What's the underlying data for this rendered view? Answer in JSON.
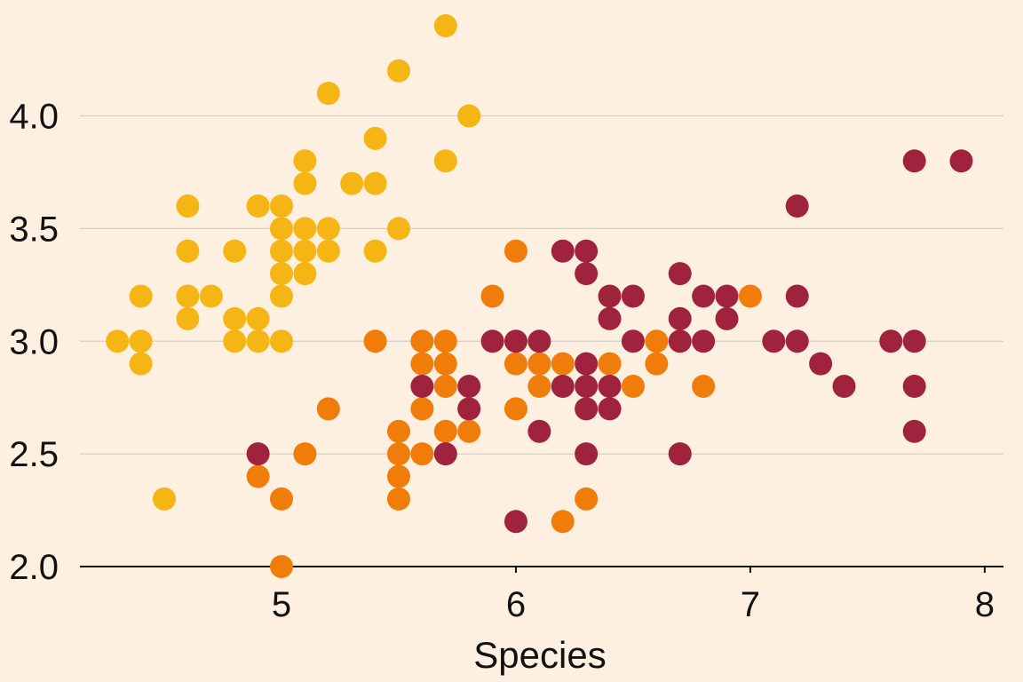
{
  "chart_data": {
    "type": "scatter",
    "title": "",
    "xlabel": "Species",
    "ylabel": "",
    "xlim": [
      4.14,
      8.08
    ],
    "ylim": [
      2.0,
      4.4
    ],
    "x_ticks": [
      5,
      6,
      7,
      8
    ],
    "y_ticks": [
      2.0,
      2.5,
      3.0,
      3.5,
      4.0
    ],
    "x_tick_labels": [
      "5",
      "6",
      "7",
      "8"
    ],
    "y_tick_labels": [
      "2.0",
      "2.5",
      "3.0",
      "3.5",
      "4.0"
    ],
    "grid": {
      "horizontal": true,
      "vertical": false
    },
    "legend": "none",
    "colors": {
      "background": "#fdf0e0",
      "grid": "#d6cec6",
      "axis": "#111111"
    },
    "series": [
      {
        "color": "#f5b514",
        "points": [
          [
            4.3,
            3.0
          ],
          [
            4.4,
            3.2
          ],
          [
            4.4,
            3.0
          ],
          [
            4.4,
            2.9
          ],
          [
            4.5,
            2.3
          ],
          [
            4.6,
            3.6
          ],
          [
            4.6,
            3.4
          ],
          [
            4.6,
            3.2
          ],
          [
            4.6,
            3.1
          ],
          [
            4.7,
            3.2
          ],
          [
            4.8,
            3.4
          ],
          [
            4.8,
            3.1
          ],
          [
            4.8,
            3.0
          ],
          [
            4.9,
            3.6
          ],
          [
            4.9,
            3.1
          ],
          [
            4.9,
            3.0
          ],
          [
            5.0,
            3.6
          ],
          [
            5.0,
            3.5
          ],
          [
            5.0,
            3.4
          ],
          [
            5.0,
            3.3
          ],
          [
            5.0,
            3.2
          ],
          [
            5.0,
            3.0
          ],
          [
            5.1,
            3.8
          ],
          [
            5.1,
            3.7
          ],
          [
            5.1,
            3.5
          ],
          [
            5.1,
            3.4
          ],
          [
            5.1,
            3.3
          ],
          [
            5.2,
            4.1
          ],
          [
            5.2,
            3.5
          ],
          [
            5.2,
            3.4
          ],
          [
            5.3,
            3.7
          ],
          [
            5.4,
            3.9
          ],
          [
            5.4,
            3.7
          ],
          [
            5.4,
            3.4
          ],
          [
            5.5,
            4.2
          ],
          [
            5.5,
            3.5
          ],
          [
            5.7,
            4.4
          ],
          [
            5.7,
            3.8
          ],
          [
            5.8,
            4.0
          ]
        ]
      },
      {
        "color": "#f07c0a",
        "points": [
          [
            4.9,
            2.4
          ],
          [
            5.0,
            2.3
          ],
          [
            5.0,
            2.0
          ],
          [
            5.1,
            2.5
          ],
          [
            5.2,
            2.7
          ],
          [
            5.4,
            3.0
          ],
          [
            5.5,
            2.6
          ],
          [
            5.5,
            2.5
          ],
          [
            5.5,
            2.4
          ],
          [
            5.5,
            2.3
          ],
          [
            5.6,
            3.0
          ],
          [
            5.6,
            2.9
          ],
          [
            5.6,
            2.7
          ],
          [
            5.6,
            2.5
          ],
          [
            5.7,
            3.0
          ],
          [
            5.7,
            2.9
          ],
          [
            5.7,
            2.8
          ],
          [
            5.7,
            2.6
          ],
          [
            5.8,
            2.6
          ],
          [
            5.9,
            3.2
          ],
          [
            6.0,
            3.4
          ],
          [
            6.0,
            2.9
          ],
          [
            6.0,
            2.7
          ],
          [
            6.1,
            2.9
          ],
          [
            6.1,
            2.8
          ],
          [
            6.2,
            2.9
          ],
          [
            6.2,
            2.2
          ],
          [
            6.3,
            2.3
          ],
          [
            6.4,
            2.9
          ],
          [
            6.5,
            2.8
          ],
          [
            6.6,
            3.0
          ],
          [
            6.6,
            2.9
          ],
          [
            6.8,
            2.8
          ],
          [
            7.0,
            3.2
          ]
        ]
      },
      {
        "color": "#a0233e",
        "points": [
          [
            4.9,
            2.5
          ],
          [
            5.6,
            2.8
          ],
          [
            5.7,
            2.5
          ],
          [
            5.8,
            2.8
          ],
          [
            5.8,
            2.7
          ],
          [
            5.9,
            3.0
          ],
          [
            6.0,
            3.0
          ],
          [
            6.0,
            2.2
          ],
          [
            6.1,
            3.0
          ],
          [
            6.1,
            2.6
          ],
          [
            6.2,
            3.4
          ],
          [
            6.2,
            2.8
          ],
          [
            6.3,
            3.4
          ],
          [
            6.3,
            3.3
          ],
          [
            6.3,
            2.9
          ],
          [
            6.3,
            2.8
          ],
          [
            6.3,
            2.7
          ],
          [
            6.3,
            2.5
          ],
          [
            6.4,
            3.2
          ],
          [
            6.4,
            3.1
          ],
          [
            6.4,
            2.8
          ],
          [
            6.4,
            2.7
          ],
          [
            6.5,
            3.2
          ],
          [
            6.5,
            3.0
          ],
          [
            6.7,
            3.3
          ],
          [
            6.7,
            3.1
          ],
          [
            6.7,
            3.0
          ],
          [
            6.7,
            2.5
          ],
          [
            6.8,
            3.2
          ],
          [
            6.8,
            3.0
          ],
          [
            6.9,
            3.2
          ],
          [
            6.9,
            3.1
          ],
          [
            7.1,
            3.0
          ],
          [
            7.2,
            3.6
          ],
          [
            7.2,
            3.2
          ],
          [
            7.2,
            3.0
          ],
          [
            7.3,
            2.9
          ],
          [
            7.4,
            2.8
          ],
          [
            7.6,
            3.0
          ],
          [
            7.7,
            3.8
          ],
          [
            7.7,
            3.0
          ],
          [
            7.7,
            2.8
          ],
          [
            7.7,
            2.6
          ],
          [
            7.9,
            3.8
          ]
        ]
      }
    ]
  }
}
